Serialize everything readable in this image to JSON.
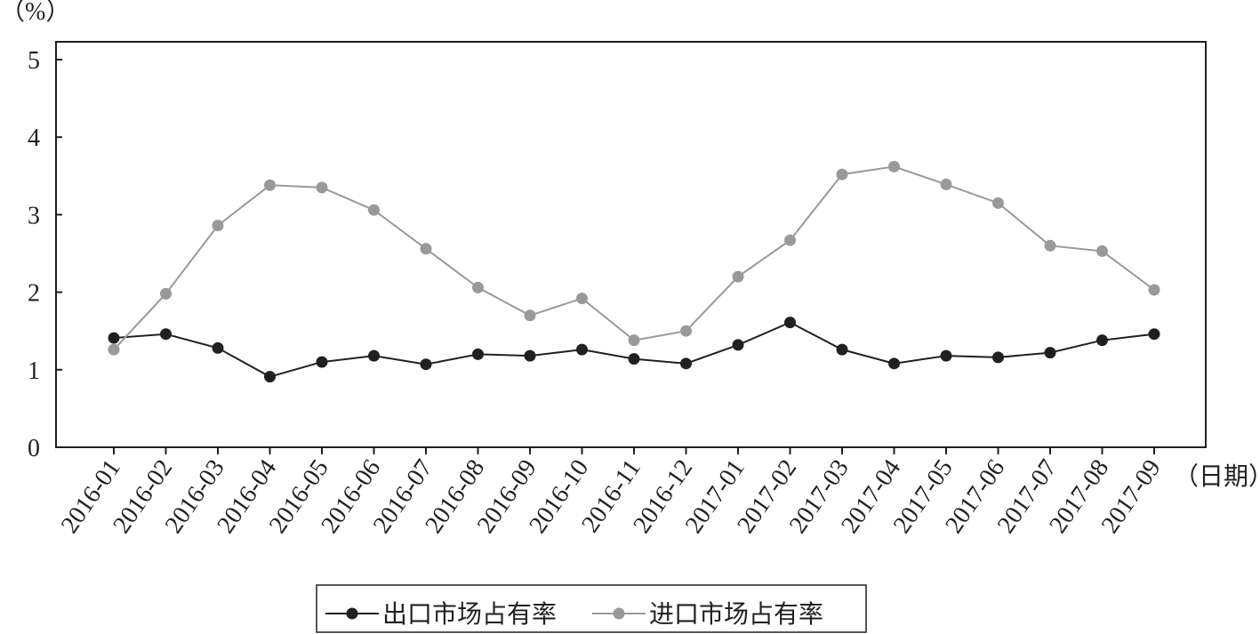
{
  "chart_data": {
    "type": "line",
    "y_unit": "（%）",
    "x_unit": "（日期）",
    "categories": [
      "2016-01",
      "2016-02",
      "2016-03",
      "2016-04",
      "2016-05",
      "2016-06",
      "2016-07",
      "2016-08",
      "2016-09",
      "2016-10",
      "2016-11",
      "2016-12",
      "2017-01",
      "2017-02",
      "2017-03",
      "2017-04",
      "2017-05",
      "2017-06",
      "2017-07",
      "2017-08",
      "2017-09"
    ],
    "series": [
      {
        "name": "出口市场占有率",
        "color": "#231f20",
        "values": [
          1.41,
          1.46,
          1.28,
          0.91,
          1.1,
          1.18,
          1.07,
          1.2,
          1.18,
          1.26,
          1.14,
          1.08,
          1.32,
          1.61,
          1.26,
          1.08,
          1.18,
          1.16,
          1.22,
          1.38,
          1.46
        ]
      },
      {
        "name": "进口市场占有率",
        "color": "#999999",
        "values": [
          1.26,
          1.98,
          2.86,
          3.38,
          3.35,
          3.06,
          2.56,
          2.06,
          1.7,
          1.92,
          1.38,
          1.5,
          2.2,
          2.67,
          3.52,
          3.62,
          3.39,
          3.15,
          2.6,
          2.53,
          2.03
        ]
      }
    ],
    "ylim": [
      0,
      5.23
    ],
    "yticks": [
      0,
      1,
      2,
      3,
      4,
      5
    ]
  }
}
